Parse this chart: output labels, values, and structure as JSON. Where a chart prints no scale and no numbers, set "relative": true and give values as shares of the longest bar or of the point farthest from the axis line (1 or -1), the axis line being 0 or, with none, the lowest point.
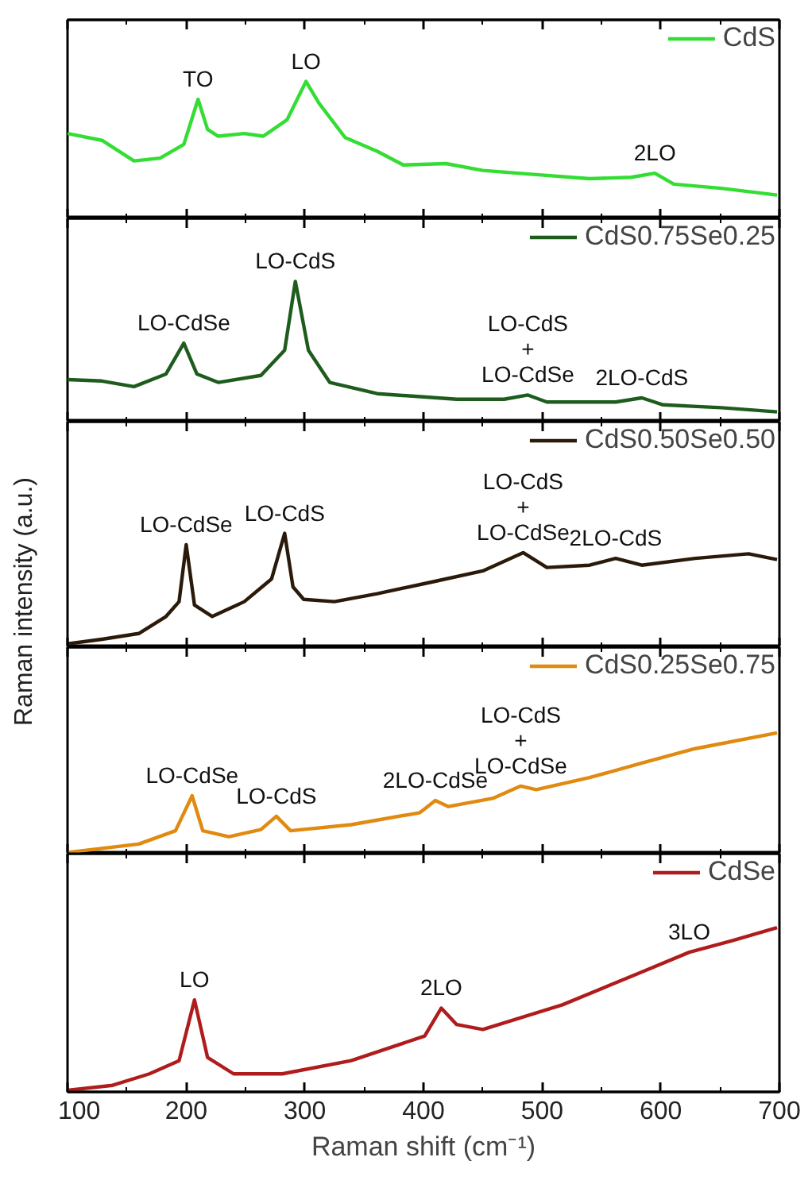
{
  "chart_data": [
    {
      "type": "line",
      "relative": true,
      "x": [
        100,
        129,
        156,
        178,
        198,
        210,
        218,
        227,
        249,
        265,
        285,
        301,
        312,
        334,
        361,
        383,
        419,
        450,
        495,
        540,
        575,
        595,
        611,
        651,
        698
      ],
      "series": [
        {
          "name": "CdS",
          "color": "#33dd33",
          "values": [
            0.62,
            0.57,
            0.42,
            0.44,
            0.54,
            0.87,
            0.65,
            0.6,
            0.62,
            0.6,
            0.72,
            1.0,
            0.84,
            0.59,
            0.49,
            0.39,
            0.4,
            0.35,
            0.32,
            0.29,
            0.3,
            0.33,
            0.25,
            0.22,
            0.17
          ]
        }
      ],
      "annotations": [
        {
          "text": "TO",
          "x": 210,
          "y": 0.87
        },
        {
          "text": "LO",
          "x": 301,
          "y": 1.0
        },
        {
          "text": "2LO",
          "x": 595,
          "y": 0.33
        }
      ],
      "xlim": [
        100,
        700
      ],
      "xticks": [
        100,
        {
          "value": 150,
          "label": null
        },
        200,
        {
          "value": 250,
          "label": null
        },
        300,
        {
          "value": 350,
          "label": null
        },
        400,
        {
          "value": 450,
          "label": null
        },
        500,
        {
          "value": 550,
          "label": null
        },
        600,
        {
          "value": 650,
          "label": null
        },
        700
      ],
      "tick_labels": false,
      "legend": "top right",
      "line_style": "solid",
      "grid": false
    },
    {
      "type": "line",
      "relative": true,
      "x": [
        100,
        129,
        156,
        183,
        198,
        209,
        227,
        263,
        283,
        292,
        303,
        321,
        361,
        428,
        468,
        488,
        504,
        562,
        584,
        602,
        651,
        698
      ],
      "series": [
        {
          "name": "CdS0.75Se0.25",
          "color": "#1e5c1e",
          "values": [
            0.3,
            0.29,
            0.25,
            0.34,
            0.56,
            0.34,
            0.28,
            0.33,
            0.51,
            1.0,
            0.51,
            0.28,
            0.2,
            0.16,
            0.16,
            0.19,
            0.14,
            0.14,
            0.17,
            0.12,
            0.1,
            0.07
          ]
        }
      ],
      "annotations": [
        {
          "text": "LO-CdS",
          "x": 292,
          "y": 1.0
        },
        {
          "text": "LO-CdSe",
          "x": 198,
          "y": 0.56
        },
        {
          "text": "LO-CdS\n+\nLO-CdSe",
          "x": 488,
          "y": 0.19
        },
        {
          "text": "2LO-CdS",
          "x": 584,
          "y": 0.17
        }
      ],
      "xlim": [
        100,
        700
      ],
      "xticks": [
        100,
        {
          "value": 150,
          "label": null
        },
        200,
        {
          "value": 250,
          "label": null
        },
        300,
        {
          "value": 350,
          "label": null
        },
        400,
        {
          "value": 450,
          "label": null
        },
        500,
        {
          "value": 550,
          "label": null
        },
        600,
        {
          "value": 650,
          "label": null
        },
        700
      ],
      "tick_labels": false,
      "legend": "top right",
      "line_style": "solid",
      "grid": false
    },
    {
      "type": "line",
      "relative": true,
      "ylabel": "Raman intensity (a.u.)",
      "x": [
        100,
        129,
        160,
        183,
        194,
        200,
        207,
        222,
        249,
        272,
        283,
        290,
        299,
        325,
        361,
        406,
        450,
        484,
        504,
        540,
        562,
        584,
        629,
        674,
        698
      ],
      "series": [
        {
          "name": "CdS0.50Se0.50",
          "color": "#2b1a0a",
          "values": [
            0.03,
            0.07,
            0.12,
            0.27,
            0.4,
            0.9,
            0.37,
            0.27,
            0.4,
            0.6,
            1.0,
            0.53,
            0.42,
            0.4,
            0.47,
            0.57,
            0.67,
            0.83,
            0.7,
            0.72,
            0.78,
            0.72,
            0.78,
            0.82,
            0.77
          ]
        }
      ],
      "annotations": [
        {
          "text": "LO-CdSe",
          "x": 200,
          "y": 0.9
        },
        {
          "text": "LO-CdS",
          "x": 283,
          "y": 1.0
        },
        {
          "text": "LO-CdS\n+\nLO-CdSe",
          "x": 484,
          "y": 0.83
        },
        {
          "text": "2LO-CdS",
          "x": 562,
          "y": 0.78
        }
      ],
      "xlim": [
        100,
        700
      ],
      "xticks": [
        100,
        {
          "value": 150,
          "label": null
        },
        200,
        {
          "value": 250,
          "label": null
        },
        300,
        {
          "value": 350,
          "label": null
        },
        400,
        {
          "value": 450,
          "label": null
        },
        500,
        {
          "value": 550,
          "label": null
        },
        600,
        {
          "value": 650,
          "label": null
        },
        700
      ],
      "tick_labels": false,
      "legend": "top right",
      "line_style": "solid",
      "grid": false
    },
    {
      "type": "line",
      "relative": true,
      "x": [
        100,
        160,
        191,
        205,
        214,
        236,
        263,
        276,
        288,
        339,
        397,
        410,
        421,
        459,
        482,
        495,
        540,
        584,
        629,
        698
      ],
      "series": [
        {
          "name": "CdS0.25Se0.75",
          "color": "#e08a10",
          "values": [
            0.01,
            0.08,
            0.19,
            0.48,
            0.19,
            0.14,
            0.2,
            0.31,
            0.19,
            0.24,
            0.34,
            0.44,
            0.39,
            0.46,
            0.56,
            0.53,
            0.63,
            0.75,
            0.87,
            1.0
          ]
        }
      ],
      "annotations": [
        {
          "text": "LO-CdSe",
          "x": 205,
          "y": 0.48
        },
        {
          "text": "LO-CdS",
          "x": 276,
          "y": 0.31
        },
        {
          "text": "2LO-CdSe",
          "x": 410,
          "y": 0.44
        },
        {
          "text": "LO-CdS\n+\nLO-CdSe",
          "x": 482,
          "y": 0.56
        }
      ],
      "xlim": [
        100,
        700
      ],
      "xticks": [
        100,
        {
          "value": 150,
          "label": null
        },
        200,
        {
          "value": 250,
          "label": null
        },
        300,
        {
          "value": 350,
          "label": null
        },
        400,
        {
          "value": 450,
          "label": null
        },
        500,
        {
          "value": 550,
          "label": null
        },
        600,
        {
          "value": 650,
          "label": null
        },
        700
      ],
      "tick_labels": false,
      "legend": "top right",
      "line_style": "solid",
      "grid": false
    },
    {
      "type": "line",
      "relative": true,
      "xlabel": "Raman shift (cm⁻¹)",
      "x": [
        100,
        138,
        169,
        194,
        207,
        218,
        240,
        281,
        339,
        401,
        415,
        428,
        450,
        517,
        584,
        624,
        660,
        698
      ],
      "series": [
        {
          "name": "CdSe",
          "color": "#b01c1c",
          "values": [
            0.01,
            0.04,
            0.11,
            0.19,
            0.56,
            0.21,
            0.11,
            0.11,
            0.19,
            0.34,
            0.51,
            0.41,
            0.38,
            0.53,
            0.73,
            0.85,
            0.92,
            1.0
          ]
        }
      ],
      "annotations": [
        {
          "text": "LO",
          "x": 207,
          "y": 0.56
        },
        {
          "text": "2LO",
          "x": 415,
          "y": 0.51
        },
        {
          "text": "3LO",
          "x": 624,
          "y": 0.85
        }
      ],
      "xlim": [
        100,
        700
      ],
      "xticks": [
        100,
        {
          "value": 150,
          "label": null
        },
        200,
        {
          "value": 250,
          "label": null
        },
        300,
        {
          "value": 350,
          "label": null
        },
        400,
        {
          "value": 450,
          "label": null
        },
        500,
        {
          "value": 550,
          "label": null
        },
        600,
        {
          "value": 650,
          "label": null
        },
        700
      ],
      "tick_labels": "x",
      "legend": "top right",
      "line_style": "solid",
      "grid": false
    }
  ]
}
